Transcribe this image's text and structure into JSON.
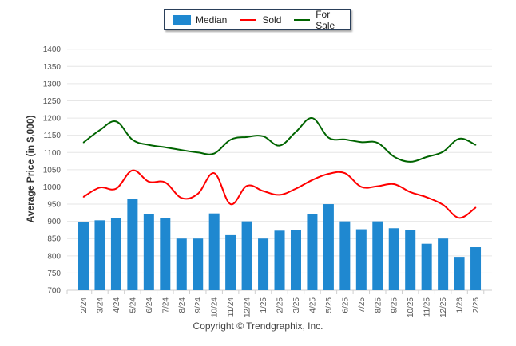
{
  "legend": {
    "items": [
      {
        "label": "Median",
        "type": "bar",
        "color": "#1f88d0"
      },
      {
        "label": "Sold",
        "type": "line",
        "color": "#ff0000"
      },
      {
        "label": "For Sale",
        "type": "line",
        "color": "#006400"
      }
    ]
  },
  "copyright": "Copyright © Trendgraphix, Inc.",
  "chart_data": {
    "type": "bar",
    "title": "",
    "xlabel": "",
    "ylabel": "Average Price (in $,000)",
    "ylim": [
      700,
      1400
    ],
    "yticks": [
      700,
      750,
      800,
      850,
      900,
      950,
      1000,
      1050,
      1100,
      1150,
      1200,
      1250,
      1300,
      1350,
      1400
    ],
    "grid": true,
    "legend_position": "top-center",
    "categories": [
      "2/24",
      "3/24",
      "4/24",
      "5/24",
      "6/24",
      "7/24",
      "8/24",
      "9/24",
      "10/24",
      "11/24",
      "12/24",
      "1/25",
      "2/25",
      "3/25",
      "4/25",
      "5/25",
      "6/25",
      "7/25",
      "8/25",
      "9/25",
      "10/25",
      "11/25",
      "12/25",
      "1/26",
      "2/26"
    ],
    "series": [
      {
        "name": "Median",
        "type": "bar",
        "color": "#1f88d0",
        "values": [
          898,
          903,
          910,
          965,
          920,
          910,
          850,
          850,
          923,
          860,
          900,
          850,
          873,
          875,
          922,
          950,
          900,
          877,
          900,
          880,
          875,
          835,
          850,
          797,
          825
        ]
      },
      {
        "name": "Sold",
        "type": "line",
        "color": "#ff0000",
        "values": [
          971,
          998,
          995,
          1048,
          1015,
          1013,
          968,
          980,
          1040,
          950,
          1003,
          988,
          977,
          995,
          1020,
          1038,
          1040,
          1000,
          1002,
          1008,
          985,
          970,
          948,
          910,
          940
        ]
      },
      {
        "name": "For Sale",
        "type": "line",
        "color": "#006400",
        "values": [
          1129,
          1165,
          1190,
          1137,
          1122,
          1115,
          1107,
          1100,
          1097,
          1137,
          1145,
          1147,
          1120,
          1160,
          1200,
          1143,
          1138,
          1130,
          1128,
          1088,
          1073,
          1087,
          1102,
          1140,
          1122
        ]
      }
    ]
  }
}
